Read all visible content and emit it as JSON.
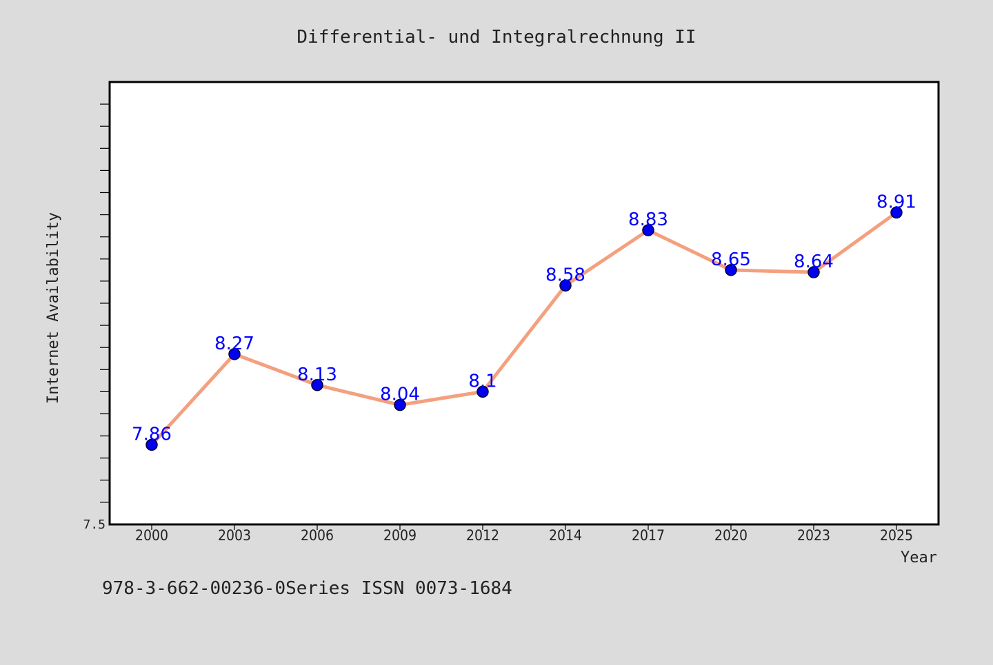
{
  "chart_data": {
    "type": "line",
    "title": "Differential- und Integralrechnung II",
    "xlabel": "Year",
    "ylabel": "Internet Availability",
    "categories": [
      "2000",
      "2003",
      "2006",
      "2009",
      "2012",
      "2014",
      "2017",
      "2020",
      "2023",
      "2025"
    ],
    "series": [
      {
        "values": [
          7.86,
          8.27,
          8.13,
          8.04,
          8.1,
          8.58,
          8.83,
          8.65,
          8.64,
          8.91
        ],
        "data_labels": [
          "7.86",
          "8.27",
          "8.13",
          "8.04",
          "8.1",
          "8.58",
          "8.83",
          "8.65",
          "8.64",
          "8.91"
        ]
      }
    ],
    "ylim": [
      7.5,
      9.5
    ],
    "yticks_labeled": [
      "7.5"
    ],
    "grid": false,
    "line_color": "#f4a07e",
    "marker_color": "#0000ee",
    "label_color": "#0000ff",
    "plot_background": "#ffffff",
    "page_background": "#dcdcdc"
  },
  "footer": {
    "text": "978-3-662-00236-0Series ISSN 0073-1684"
  }
}
